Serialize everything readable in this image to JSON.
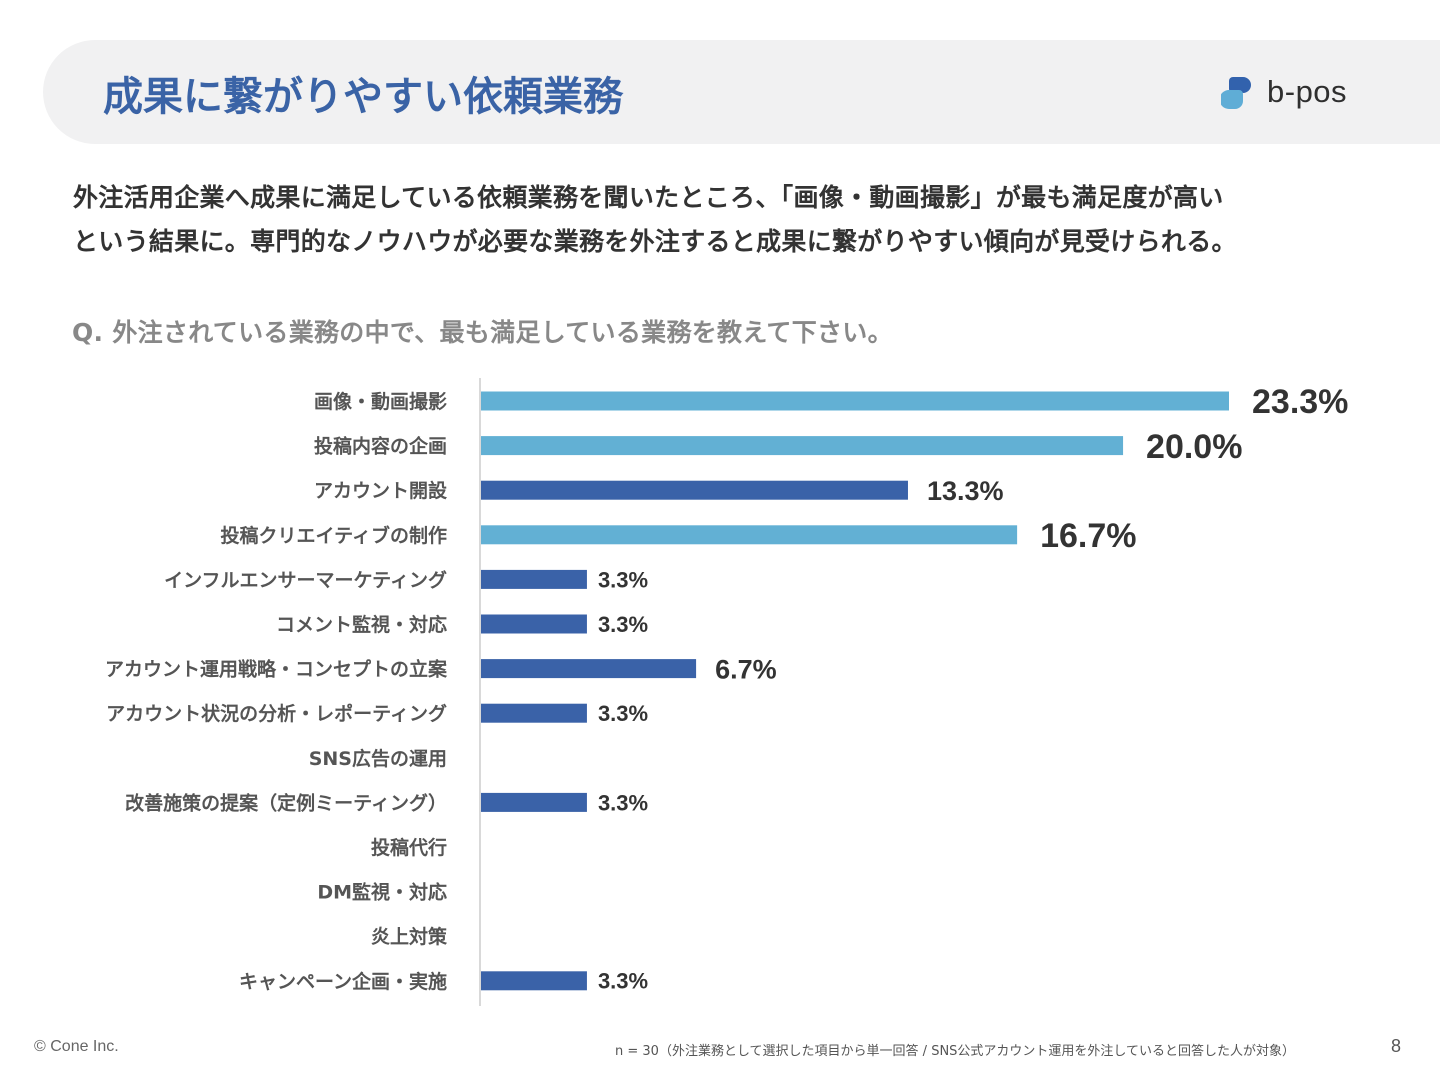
{
  "header": {
    "title": "成果に繋がりやすい依頼業務",
    "logo_text": "b-pos",
    "logo_icon": "b-pos-logo-icon"
  },
  "lead": {
    "line1": "外注活用企業へ成果に満足している依頼業務を聞いたところ、「画像・動画撮影」が最も満足度が高い",
    "line2": "という結果に。専門的なノウハウが必要な業務を外注すると成果に繋がりやすい傾向が見受けられる。"
  },
  "question": "Q. 外注されている業務の中で、最も満足している業務を教えて下さい。",
  "colors": {
    "highlight": "#62b0d4",
    "normal": "#3a62a8",
    "title": "#3a63a6",
    "axis": "#d9d9d9"
  },
  "chart_data": {
    "type": "bar",
    "orientation": "horizontal",
    "title": "Q. 外注されている業務の中で、最も満足している業務を教えて下さい。",
    "xlabel": "",
    "ylabel": "",
    "unit": "%",
    "xlim": [
      0,
      23.3
    ],
    "grid": false,
    "legend": "none",
    "categories": [
      "画像・動画撮影",
      "投稿内容の企画",
      "アカウント開設",
      "投稿クリエイティブの制作",
      "インフルエンサーマーケティング",
      "コメント監視・対応",
      "アカウント運用戦略・コンセプトの立案",
      "アカウント状況の分析・レポーティング",
      "SNS広告の運用",
      "改善施策の提案（定例ミーティング）",
      "投稿代行",
      "DM監視・対応",
      "炎上対策",
      "キャンペーン企画・実施"
    ],
    "values": [
      23.3,
      20.0,
      13.3,
      16.7,
      3.3,
      3.3,
      6.7,
      3.3,
      0,
      3.3,
      0,
      0,
      0,
      3.3
    ],
    "labels": [
      "23.3%",
      "20.0%",
      "13.3%",
      "16.7%",
      "3.3%",
      "3.3%",
      "6.7%",
      "3.3%",
      "",
      "3.3%",
      "",
      "",
      "",
      "3.3%"
    ],
    "highlighted": [
      true,
      true,
      false,
      true,
      false,
      false,
      false,
      false,
      false,
      false,
      false,
      false,
      false,
      false
    ]
  },
  "footer": {
    "copyright": "© Cone Inc.",
    "note": "n = 30（外注業務として選択した項目から単一回答 / SNS公式アカウント運用を外注していると回答した人が対象）",
    "page": "8"
  }
}
